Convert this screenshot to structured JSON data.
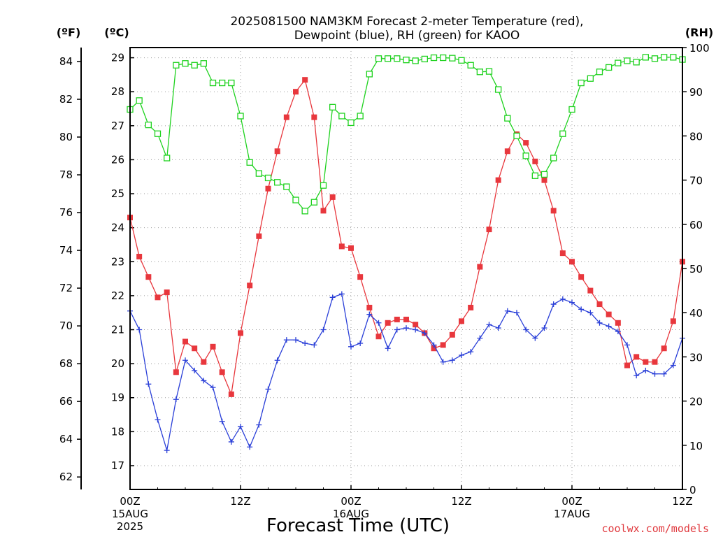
{
  "chart_data": {
    "type": "line",
    "title": [
      "2025081500 NAM3KM Forecast 2-meter Temperature (red),",
      "Dewpoint (blue), RH (green) for KAOO"
    ],
    "xlabel": "Forecast Time (UTC)",
    "credit": "coolwx.com/models",
    "units": {
      "fahrenheit": "(ºF)",
      "celsius": "(ºC)",
      "rh": "(RH)"
    },
    "x_range_hours": [
      0,
      60
    ],
    "x_ticks": [
      {
        "hour": 0,
        "lines": [
          "00Z",
          "15AUG",
          "2025"
        ]
      },
      {
        "hour": 12,
        "lines": [
          "12Z"
        ]
      },
      {
        "hour": 24,
        "lines": [
          "00Z",
          "16AUG"
        ]
      },
      {
        "hour": 36,
        "lines": [
          "12Z"
        ]
      },
      {
        "hour": 48,
        "lines": [
          "00Z",
          "17AUG"
        ]
      },
      {
        "hour": 60,
        "lines": [
          "12Z"
        ]
      }
    ],
    "y_celsius_range": [
      16.3,
      29.3
    ],
    "y_celsius_ticks": [
      17,
      18,
      19,
      20,
      21,
      22,
      23,
      24,
      25,
      26,
      27,
      28,
      29
    ],
    "y_fahrenheit_ticks": [
      62,
      64,
      66,
      68,
      70,
      72,
      74,
      76,
      78,
      80,
      82,
      84
    ],
    "y_rh_range": [
      0,
      100
    ],
    "y_rh_ticks": [
      0,
      10,
      20,
      30,
      40,
      50,
      60,
      70,
      80,
      90,
      100
    ],
    "grid": true,
    "colors": {
      "temperature": "#e8373d",
      "dewpoint": "#2a3fd8",
      "rh": "#1ed21e"
    },
    "series": [
      {
        "name": "Temperature",
        "unit": "C",
        "marker": "square-filled",
        "color": "#e8373d",
        "x": [
          0,
          1,
          2,
          3,
          4,
          5,
          6,
          7,
          8,
          9,
          10,
          11,
          12,
          13,
          14,
          15,
          16,
          17,
          18,
          19,
          20,
          21,
          22,
          23,
          24,
          25,
          26,
          27,
          28,
          29,
          30,
          31,
          32,
          33,
          34,
          35,
          36,
          37,
          38,
          39,
          40,
          41,
          42,
          43,
          44,
          45,
          46,
          47,
          48,
          49,
          50,
          51,
          52,
          53,
          54,
          55,
          56,
          57,
          58,
          59,
          60
        ],
        "values": [
          24.3,
          23.15,
          22.55,
          21.95,
          22.1,
          19.75,
          20.65,
          20.45,
          20.05,
          20.5,
          19.75,
          19.1,
          20.9,
          22.3,
          23.75,
          25.15,
          26.25,
          27.25,
          28.0,
          28.35,
          27.25,
          24.5,
          24.9,
          23.45,
          23.4,
          22.55,
          21.65,
          20.8,
          21.2,
          21.3,
          21.3,
          21.15,
          20.9,
          20.45,
          20.55,
          20.85,
          21.25,
          21.65,
          22.85,
          23.95,
          25.4,
          26.25,
          26.75,
          26.5,
          25.95,
          25.4,
          24.5,
          23.25,
          23.0,
          22.55,
          22.15,
          21.75,
          21.45,
          21.2,
          19.95,
          20.2,
          20.05,
          20.05,
          20.45,
          21.25,
          23.0
        ]
      },
      {
        "name": "Dewpoint",
        "unit": "C",
        "marker": "plus",
        "color": "#2a3fd8",
        "x": [
          0,
          1,
          2,
          3,
          4,
          5,
          6,
          7,
          8,
          9,
          10,
          11,
          12,
          13,
          14,
          15,
          16,
          17,
          18,
          19,
          20,
          21,
          22,
          23,
          24,
          25,
          26,
          27,
          28,
          29,
          30,
          31,
          32,
          33,
          34,
          35,
          36,
          37,
          38,
          39,
          40,
          41,
          42,
          43,
          44,
          45,
          46,
          47,
          48,
          49,
          50,
          51,
          52,
          53,
          54,
          55,
          56,
          57,
          58,
          59,
          60
        ],
        "values": [
          21.55,
          21.0,
          19.4,
          18.35,
          17.45,
          18.95,
          20.1,
          19.8,
          19.5,
          19.3,
          18.3,
          17.7,
          18.15,
          17.55,
          18.2,
          19.25,
          20.1,
          20.7,
          20.7,
          20.6,
          20.55,
          21.0,
          21.95,
          22.05,
          20.5,
          20.6,
          21.45,
          21.2,
          20.45,
          21.0,
          21.05,
          21.0,
          20.9,
          20.55,
          20.05,
          20.1,
          20.25,
          20.35,
          20.75,
          21.15,
          21.05,
          21.55,
          21.5,
          21.0,
          20.75,
          21.05,
          21.75,
          21.9,
          21.8,
          21.6,
          21.5,
          21.2,
          21.1,
          20.95,
          20.55,
          19.65,
          19.8,
          19.7,
          19.7,
          19.95,
          20.75
        ]
      },
      {
        "name": "RH",
        "unit": "%",
        "marker": "square-open",
        "color": "#1ed21e",
        "x": [
          0,
          1,
          2,
          3,
          4,
          5,
          6,
          7,
          8,
          9,
          10,
          11,
          12,
          13,
          14,
          15,
          16,
          17,
          18,
          19,
          20,
          21,
          22,
          23,
          24,
          25,
          26,
          27,
          28,
          29,
          30,
          31,
          32,
          33,
          34,
          35,
          36,
          37,
          38,
          39,
          40,
          41,
          42,
          43,
          44,
          45,
          46,
          47,
          48,
          49,
          50,
          51,
          52,
          53,
          54,
          55,
          56,
          57,
          58,
          59,
          60
        ],
        "values": [
          86,
          88,
          82.5,
          80.5,
          75,
          96,
          96.4,
          96,
          96.4,
          92,
          92,
          92,
          84.5,
          74,
          71.5,
          70.5,
          69.5,
          68.5,
          65.5,
          63,
          65,
          68.8,
          86.5,
          84.5,
          83,
          84.5,
          94,
          97.5,
          97.5,
          97.5,
          97.2,
          97,
          97.4,
          97.7,
          97.7,
          97.6,
          97.1,
          96,
          94.5,
          94.6,
          90.5,
          84,
          80,
          75.5,
          71,
          71.3,
          75,
          80.5,
          86,
          92,
          93,
          94.5,
          95.5,
          96.5,
          97,
          96.7,
          97.8,
          97.5,
          97.8,
          97.8,
          97.3
        ]
      }
    ]
  }
}
